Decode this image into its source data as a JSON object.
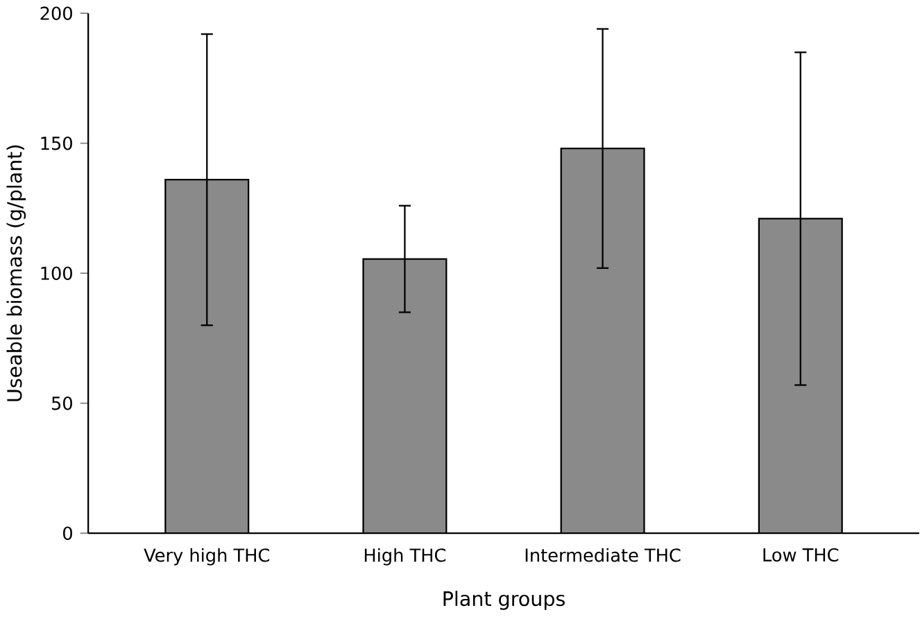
{
  "chart_data": {
    "type": "bar",
    "xlabel": "Plant groups",
    "ylabel": "Useable biomass (g/plant)",
    "categories": [
      "Very high THC",
      "High THC",
      "Intermediate THC",
      "Low THC"
    ],
    "values": [
      136,
      105.5,
      148,
      121
    ],
    "errors": [
      56,
      20.5,
      46,
      64
    ],
    "color": "#8a8a8a",
    "ylim": [
      0,
      200
    ],
    "yticks": [
      0,
      50,
      100,
      150,
      200
    ],
    "grid": false
  }
}
